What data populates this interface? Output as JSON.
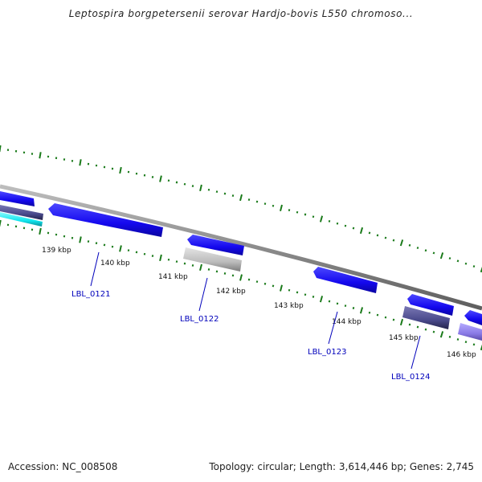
{
  "title": "Leptospira borgpetersenii serovar Hardjo-bovis L550 chromoso...",
  "footer": {
    "accession": "Accession: NC_008508",
    "summary": "Topology: circular; Length: 3,614,446 bp; Genes: 2,745"
  },
  "colors": {
    "backbone": "#8c8c8c",
    "gene_forward": "#1a10ee",
    "gene_gray": "#b8b8b8",
    "gene_dark": "#4a4a8c",
    "gene_cyan": "#10e6ee",
    "gene_lavender": "#8a7ae6",
    "tick": "#1a7a1a",
    "label": "#0000bb"
  },
  "scale_ticks": [
    {
      "label": "139 kbp"
    },
    {
      "label": "140 kbp"
    },
    {
      "label": "141 kbp"
    },
    {
      "label": "142 kbp"
    },
    {
      "label": "143 kbp"
    },
    {
      "label": "144 kbp"
    },
    {
      "label": "145 kbp"
    },
    {
      "label": "146 kbp"
    }
  ],
  "genes": [
    {
      "label": "LBL_0121"
    },
    {
      "label": "LBL_0122"
    },
    {
      "label": "LBL_0123"
    },
    {
      "label": "LBL_0124"
    }
  ]
}
